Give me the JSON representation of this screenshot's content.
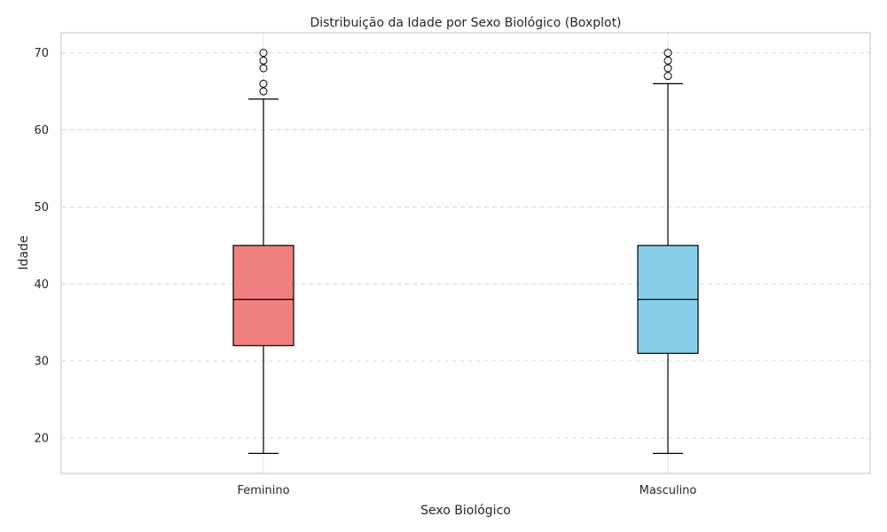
{
  "chart_data": {
    "type": "boxplot",
    "title": "Distribuição da Idade por Sexo Biológico (Boxplot)",
    "xlabel": "Sexo Biológico",
    "ylabel": "Idade",
    "ylim": [
      15.4,
      72.6
    ],
    "yticks": [
      20,
      30,
      40,
      50,
      60,
      70
    ],
    "grid": "y-dashed",
    "categories": [
      "Feminino",
      "Masculino"
    ],
    "series": [
      {
        "category": "Feminino",
        "color": "#f08080",
        "whisker_low": 18,
        "q1": 32,
        "median": 38,
        "q3": 45,
        "whisker_high": 64,
        "outliers": [
          65,
          66,
          68,
          69,
          70
        ]
      },
      {
        "category": "Masculino",
        "color": "#87ceeb",
        "whisker_low": 18,
        "q1": 31,
        "median": 38,
        "q3": 45,
        "whisker_high": 66,
        "outliers": [
          67,
          68,
          69,
          70
        ]
      }
    ]
  }
}
